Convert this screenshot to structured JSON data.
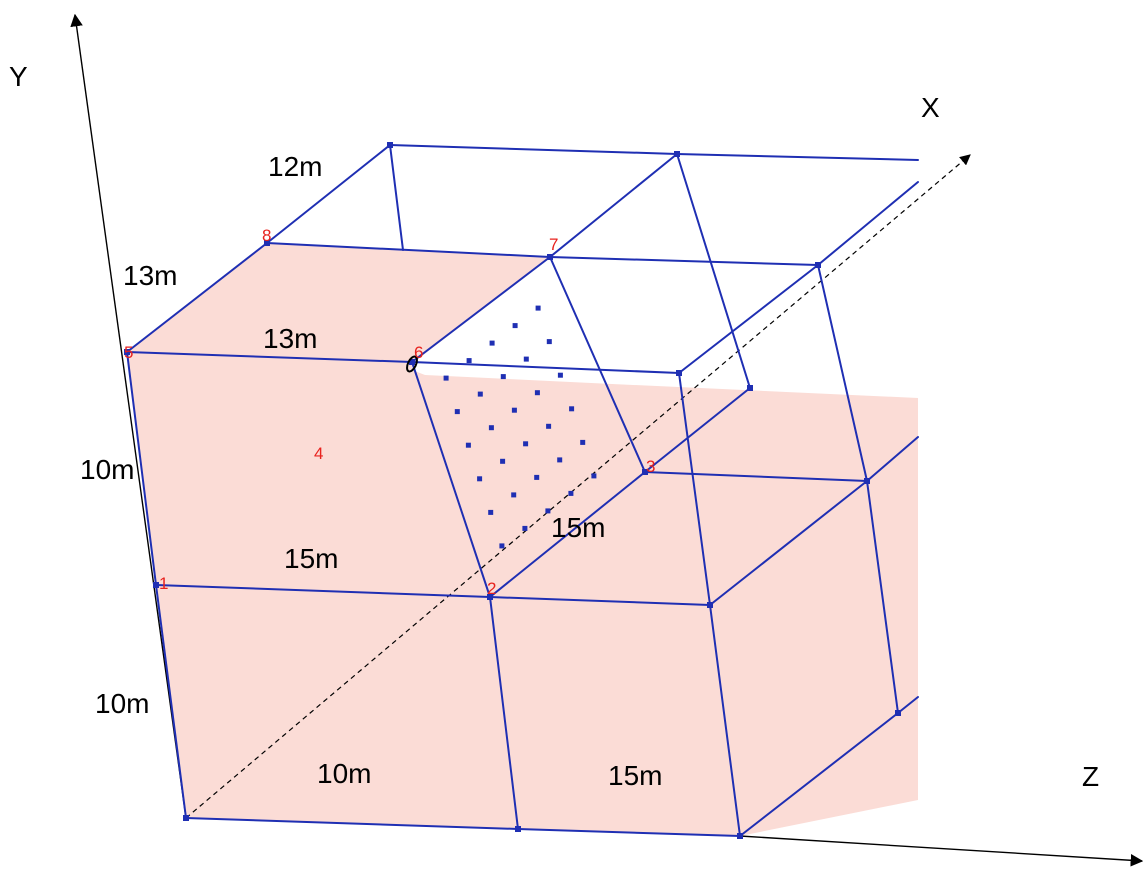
{
  "axes": {
    "x": "X",
    "y": "Y",
    "z": "Z"
  },
  "dimensions": [
    "12m",
    "13m",
    "13m",
    "10m",
    "15m",
    "10m",
    "15m",
    "10m",
    "15m"
  ],
  "node_labels": [
    "1",
    "2",
    "3",
    "4",
    "5",
    "6",
    "7",
    "8"
  ],
  "colors": {
    "line": "#1f2fb3",
    "fill": "#fbdcd6",
    "node_label": "#e8221e",
    "axis": "#000000"
  }
}
